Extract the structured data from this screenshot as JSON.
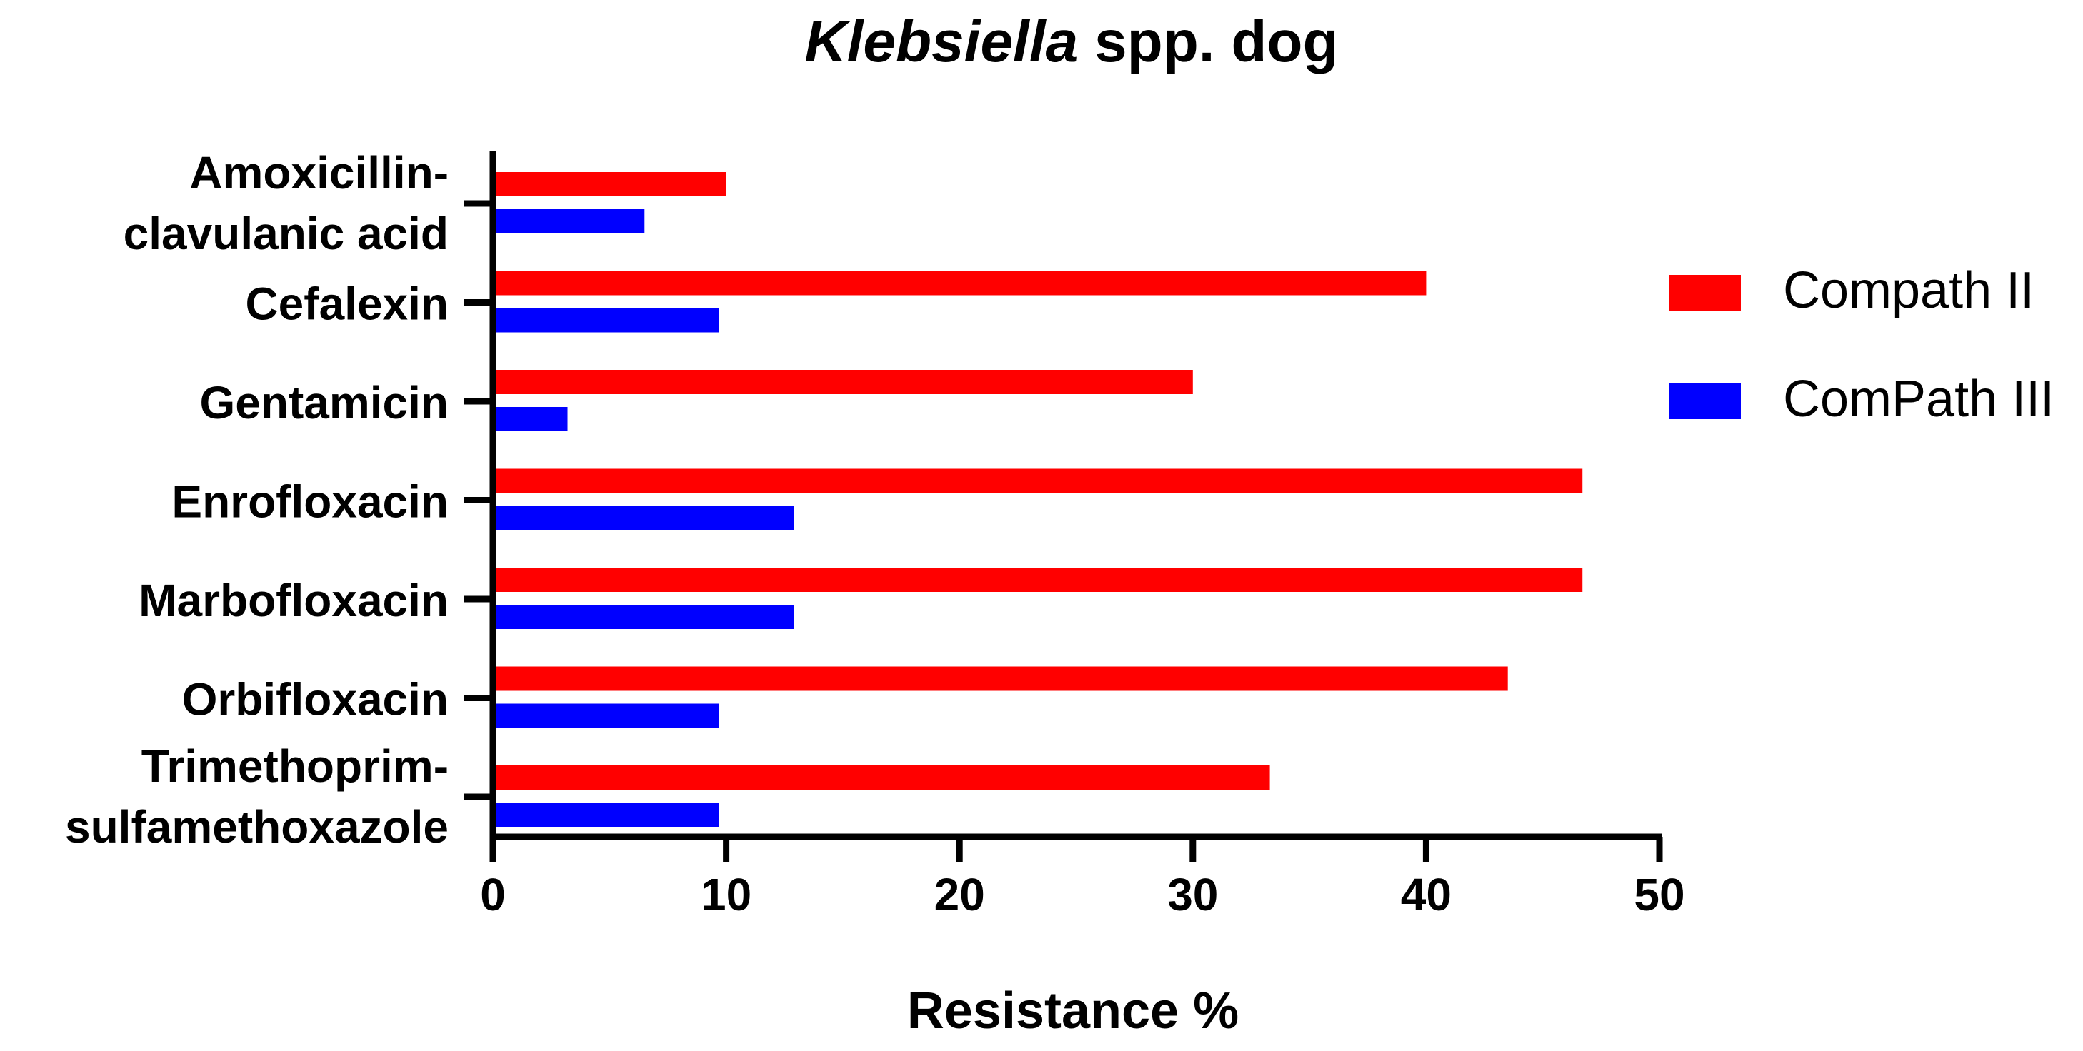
{
  "chart_data": {
    "type": "bar",
    "orientation": "horizontal",
    "title_italic": "Klebsiella",
    "title_rest": " spp. dog",
    "xlabel": "Resistance %",
    "ylabel": "",
    "xlim": [
      0,
      50
    ],
    "x_ticks": [
      "0",
      "10",
      "20",
      "30",
      "40",
      "50"
    ],
    "categories": [
      [
        "Amoxicillin-",
        "clavulanic acid"
      ],
      [
        "Cefalexin"
      ],
      [
        "Gentamicin"
      ],
      [
        "Enrofloxacin"
      ],
      [
        "Marbofloxacin"
      ],
      [
        "Orbifloxacin"
      ],
      [
        "Trimethoprim-",
        "sulfamethoxazole"
      ]
    ],
    "series": [
      {
        "name": "Compath II",
        "color": "#ff0000",
        "values": [
          10,
          40,
          30,
          46.7,
          46.7,
          43.5,
          33.3
        ]
      },
      {
        "name": "ComPath III",
        "color": "#0000ff",
        "values": [
          6.5,
          9.7,
          3.2,
          12.9,
          12.9,
          9.7,
          9.7
        ]
      }
    ],
    "legend_position": "right",
    "grid": false
  }
}
